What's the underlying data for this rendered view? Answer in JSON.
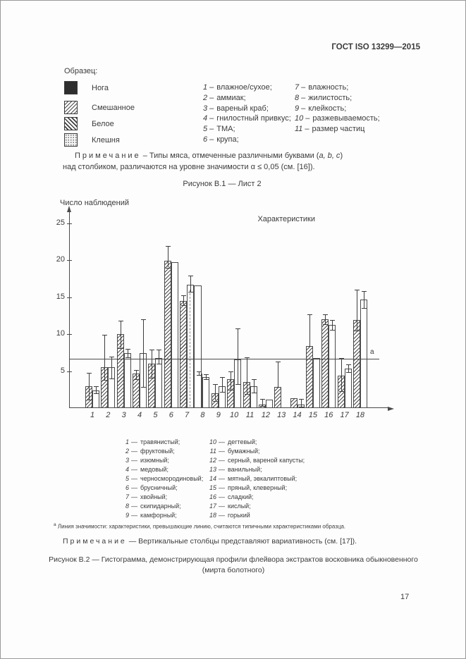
{
  "header": {
    "title": "ГОСТ ISO 13299—2015"
  },
  "figure_b1": {
    "sample_label": "Образец:",
    "samples": [
      {
        "name": "Нога",
        "pattern": "solid"
      },
      {
        "name": "Смешанное",
        "pattern": "hatch-forward"
      },
      {
        "name": "Белое",
        "pattern": "hatch-back"
      },
      {
        "name": "Клешня",
        "pattern": "stipple"
      }
    ],
    "dash": "–",
    "characteristics_col1": [
      {
        "n": "1",
        "t": "влажное/сухое;"
      },
      {
        "n": "2",
        "t": "аммиак;"
      },
      {
        "n": "3",
        "t": "вареный краб;"
      },
      {
        "n": "4",
        "t": "гнилостный привкус;"
      },
      {
        "n": "5",
        "t": "ТМА;"
      },
      {
        "n": "6",
        "t": "крупа;"
      }
    ],
    "characteristics_col2": [
      {
        "n": "7",
        "t": "влажность;"
      },
      {
        "n": "8",
        "t": "жилистость;"
      },
      {
        "n": "9",
        "t": "клейкость;"
      },
      {
        "n": "10",
        "t": "разжевываемость;"
      },
      {
        "n": "11",
        "t": "размер частиц"
      }
    ],
    "note": {
      "label": "Примечание",
      "line1_pre": "– Типы мяса, отмеченные различными буквами (",
      "line1_italic": "a, b, c",
      "line1_post": ")",
      "line2": "над столбиком, различаются на уровне значимости α ≤ 0,05 (см. [16])."
    },
    "caption": "Рисунок В.1 — Лист 2"
  },
  "chart_data": {
    "type": "bar",
    "title": "",
    "ylabel": "Число наблюдений",
    "xlabel": "Характеристики",
    "ylim": [
      0,
      27
    ],
    "yticks": [
      5,
      10,
      15,
      20,
      25
    ],
    "grid": false,
    "legend_position": "none",
    "categories": [
      "1",
      "2",
      "3",
      "4",
      "5",
      "6",
      "7",
      "8",
      "9",
      "10",
      "11",
      "12",
      "13",
      "14",
      "15",
      "16",
      "17",
      "18"
    ],
    "significance_line": {
      "value": 6.7,
      "label": "a"
    },
    "series": [
      {
        "name": "series-hatched",
        "values": [
          3.0,
          5.5,
          10.0,
          4.7,
          6.0,
          19.9,
          14.5,
          4.7,
          2.0,
          3.9,
          3.5,
          0.5,
          2.9,
          1.3,
          8.4,
          12.0,
          4.4,
          11.9
        ],
        "err_lo": [
          1.1,
          3.8,
          8.1,
          3.9,
          4.1,
          19.0,
          13.9,
          4.5,
          1.0,
          2.5,
          1.9,
          0.3,
          2.9,
          null,
          8.4,
          11.3,
          2.3,
          10.5
        ],
        "err_hi": [
          4.8,
          9.9,
          11.8,
          5.1,
          7.9,
          21.9,
          15.2,
          5.0,
          3.2,
          5.0,
          6.9,
          1.2,
          6.3,
          null,
          12.7,
          12.7,
          6.8,
          16.0
        ]
      },
      {
        "name": "series-white",
        "values": [
          2.4,
          5.5,
          7.4,
          7.4,
          6.8,
          19.7,
          16.7,
          4.2,
          3.0,
          6.6,
          3.0,
          1.1,
          0,
          0.5,
          6.8,
          11.2,
          5.3,
          14.7
        ],
        "err_lo": [
          2.0,
          4.0,
          6.9,
          2.9,
          6.0,
          null,
          15.7,
          3.9,
          2.2,
          3.2,
          2.1,
          null,
          null,
          0.2,
          null,
          10.6,
          4.9,
          13.5
        ],
        "err_hi": [
          3.0,
          7.0,
          8.0,
          12.0,
          7.9,
          null,
          17.9,
          4.6,
          4.2,
          10.8,
          3.9,
          null,
          null,
          1.2,
          null,
          11.9,
          5.9,
          15.8
        ]
      }
    ],
    "extra_bar": {
      "category": 7,
      "value": 16.6
    },
    "dashed_guide": {
      "category": 7,
      "from_value": 16.0
    }
  },
  "figure_b2": {
    "dash": "—",
    "flavor_col1": [
      {
        "n": "1",
        "t": "травянистый;"
      },
      {
        "n": "2",
        "t": "фруктовый;"
      },
      {
        "n": "3",
        "t": "изюмный;"
      },
      {
        "n": "4",
        "t": "медовый;"
      },
      {
        "n": "5",
        "t": "черносмородиновый;"
      },
      {
        "n": "6",
        "t": "брусничный;"
      },
      {
        "n": "7",
        "t": "хвойный;"
      },
      {
        "n": "8",
        "t": "скипидарный;"
      },
      {
        "n": "9",
        "t": "камфорный;"
      }
    ],
    "flavor_col2": [
      {
        "n": "10",
        "t": "дегтевый;"
      },
      {
        "n": "11",
        "t": "бумажный;"
      },
      {
        "n": "12",
        "t": "серный, вареной капусты;"
      },
      {
        "n": "13",
        "t": "ванильный;"
      },
      {
        "n": "14",
        "t": "мятный, эвкалиптовый;"
      },
      {
        "n": "15",
        "t": "пряный, клеверный;"
      },
      {
        "n": "16",
        "t": "сладкий;"
      },
      {
        "n": "17",
        "t": "кислый;"
      },
      {
        "n": "18",
        "t": "горький"
      }
    ],
    "footnote": {
      "sup": "а",
      "text": "Линия значимости: характеристики, превышающие линию, считаются типичными характеристиками образца."
    },
    "note": {
      "label": "Примечание",
      "text": "— Вертикальные столбцы представляют вариативность (см. [17])."
    },
    "caption_line1": "Рисунок В.2 — Гистограмма, демонстрирующая профили флейвора экстрактов восковника обыкновенного",
    "caption_line2": "(мирта болотного)"
  },
  "page_number": "17"
}
